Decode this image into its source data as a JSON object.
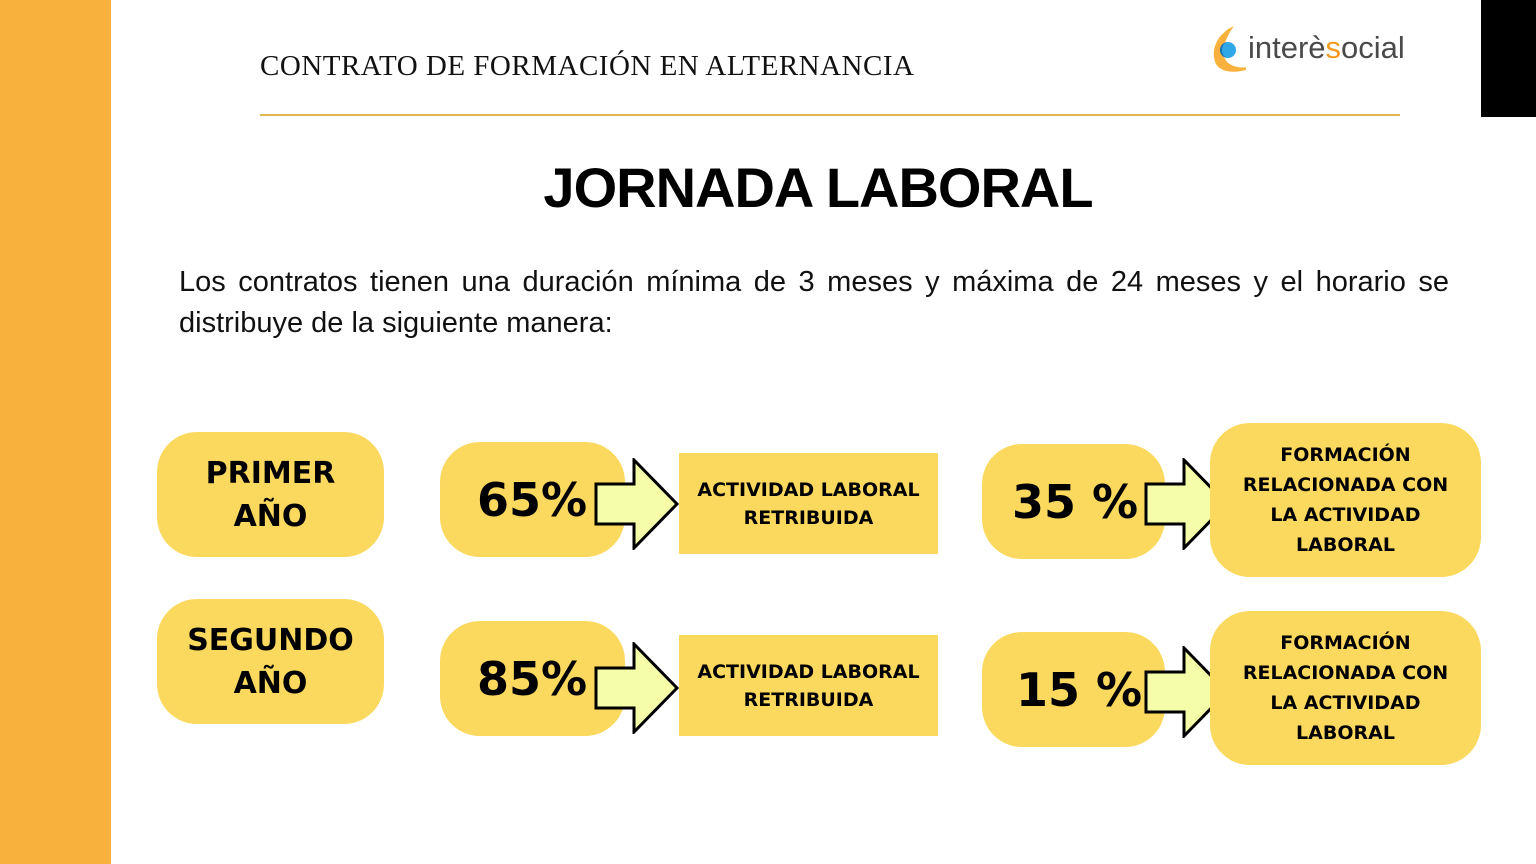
{
  "header": {
    "title": "CONTRATO DE FORMACIÓN EN ALTERNANCIA"
  },
  "logo": {
    "text_before": "interè",
    "text_accent": "s",
    "text_after": "ocial",
    "icon": "crescent-logo-icon"
  },
  "title": "JORNADA LABORAL",
  "intro": "Los contratos tienen una duración mínima de 3 meses y máxima de 24 meses y el horario se distribuye de la siguiente manera:",
  "colors": {
    "sidebar": "#F9B13E",
    "pill": "#FBD95E",
    "arrow": "#F5FDA8",
    "rule": "#E0B84E"
  },
  "rows": [
    {
      "year": "PRIMER AÑO",
      "work_pct": "65%",
      "work_label": "ACTIVIDAD LABORAL RETRIBUIDA",
      "training_pct": "35 %",
      "training_label": "FORMACIÓN RELACIONADA CON LA ACTIVIDAD LABORAL"
    },
    {
      "year": "SEGUNDO AÑO",
      "work_pct": "85%",
      "work_label": "ACTIVIDAD LABORAL RETRIBUIDA",
      "training_pct": "15 %",
      "training_label": "FORMACIÓN RELACIONADA CON LA ACTIVIDAD LABORAL"
    }
  ]
}
